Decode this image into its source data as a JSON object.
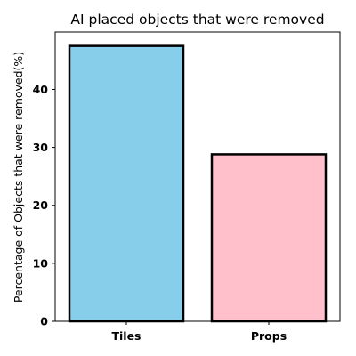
{
  "chart_data": {
    "type": "bar",
    "title": "AI placed objects that were removed",
    "xlabel": "",
    "ylabel": "Percentage of Objects that were removed(%)",
    "categories": [
      "Tiles",
      "Props"
    ],
    "values": [
      47.5,
      28.8
    ],
    "colors": [
      "#87CEEB",
      "#FFC0CB"
    ],
    "edge_color": "#000000",
    "ylim": [
      0,
      49.9
    ],
    "yticks": [
      0,
      10,
      20,
      30,
      40
    ],
    "grid": false
  }
}
